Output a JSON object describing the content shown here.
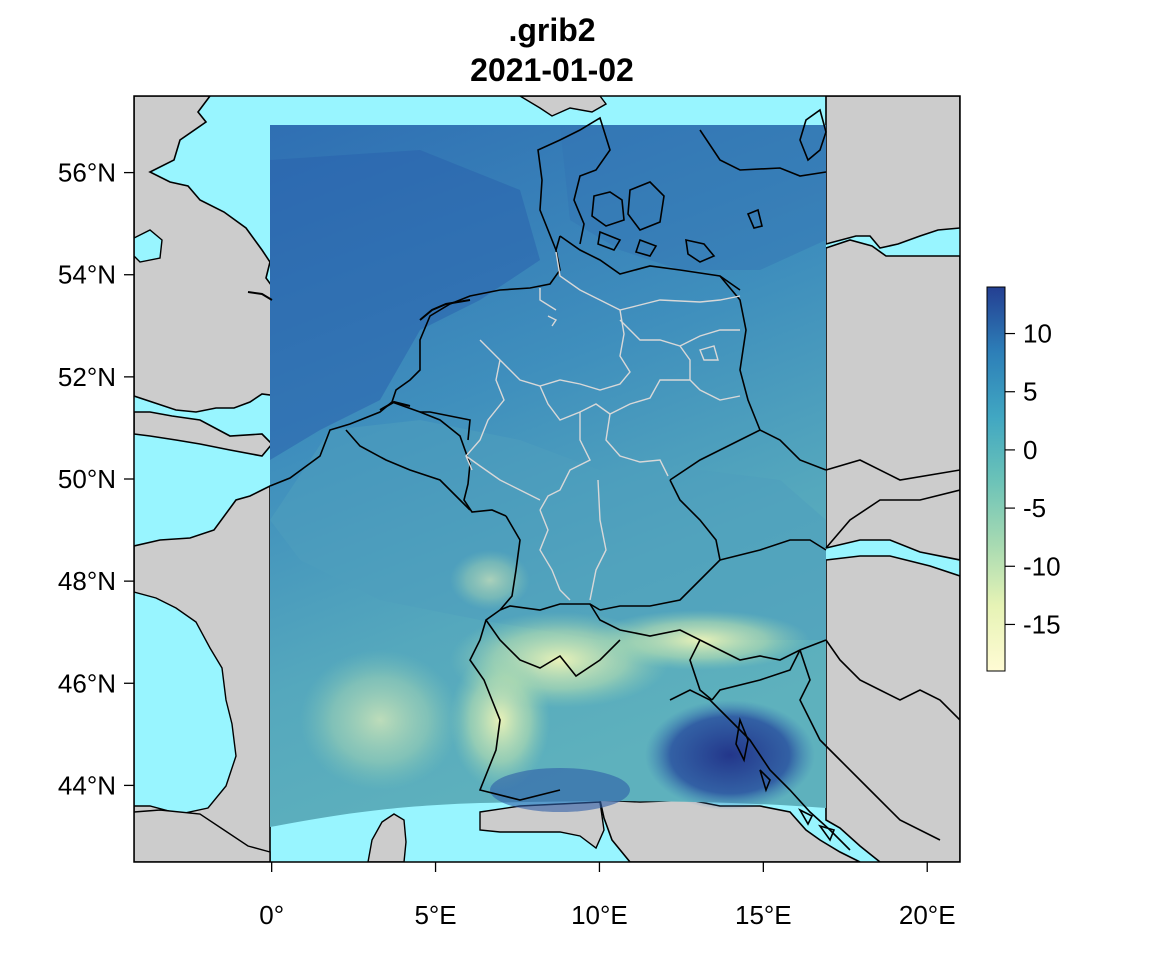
{
  "title": ".grib2",
  "subtitle": "2021-01-02",
  "colors": {
    "sea": "#98f5ff",
    "land": "#cccccc",
    "border": "#000000",
    "state_border": "#d8d8d8",
    "scale": [
      "#fffbd4",
      "#e6f3b5",
      "#a7dab2",
      "#6ac2b8",
      "#41a7c2",
      "#2d7fb8",
      "#243f92"
    ]
  },
  "map": {
    "lon_range": [
      -4.2,
      21
    ],
    "lat_range": [
      42.5,
      57.5
    ],
    "data_extent_lon": [
      0,
      17
    ],
    "data_extent_lat": [
      43.2,
      56.9
    ],
    "x_ticks": [
      {
        "value": 0,
        "label": "0°"
      },
      {
        "value": 5,
        "label": "5°E"
      },
      {
        "value": 10,
        "label": "10°E"
      },
      {
        "value": 15,
        "label": "15°E"
      },
      {
        "value": 20,
        "label": "20°E"
      }
    ],
    "y_ticks": [
      {
        "value": 44,
        "label": "44°N"
      },
      {
        "value": 46,
        "label": "46°N"
      },
      {
        "value": 48,
        "label": "48°N"
      },
      {
        "value": 50,
        "label": "50°N"
      },
      {
        "value": 52,
        "label": "52°N"
      },
      {
        "value": 54,
        "label": "54°N"
      },
      {
        "value": 56,
        "label": "56°N"
      }
    ]
  },
  "legend": {
    "range": [
      -19,
      14
    ],
    "ticks": [
      10,
      5,
      0,
      -5,
      -10,
      -15
    ],
    "tick_labels": [
      "10",
      "5",
      "0",
      "-5",
      "-10",
      "-15"
    ]
  }
}
